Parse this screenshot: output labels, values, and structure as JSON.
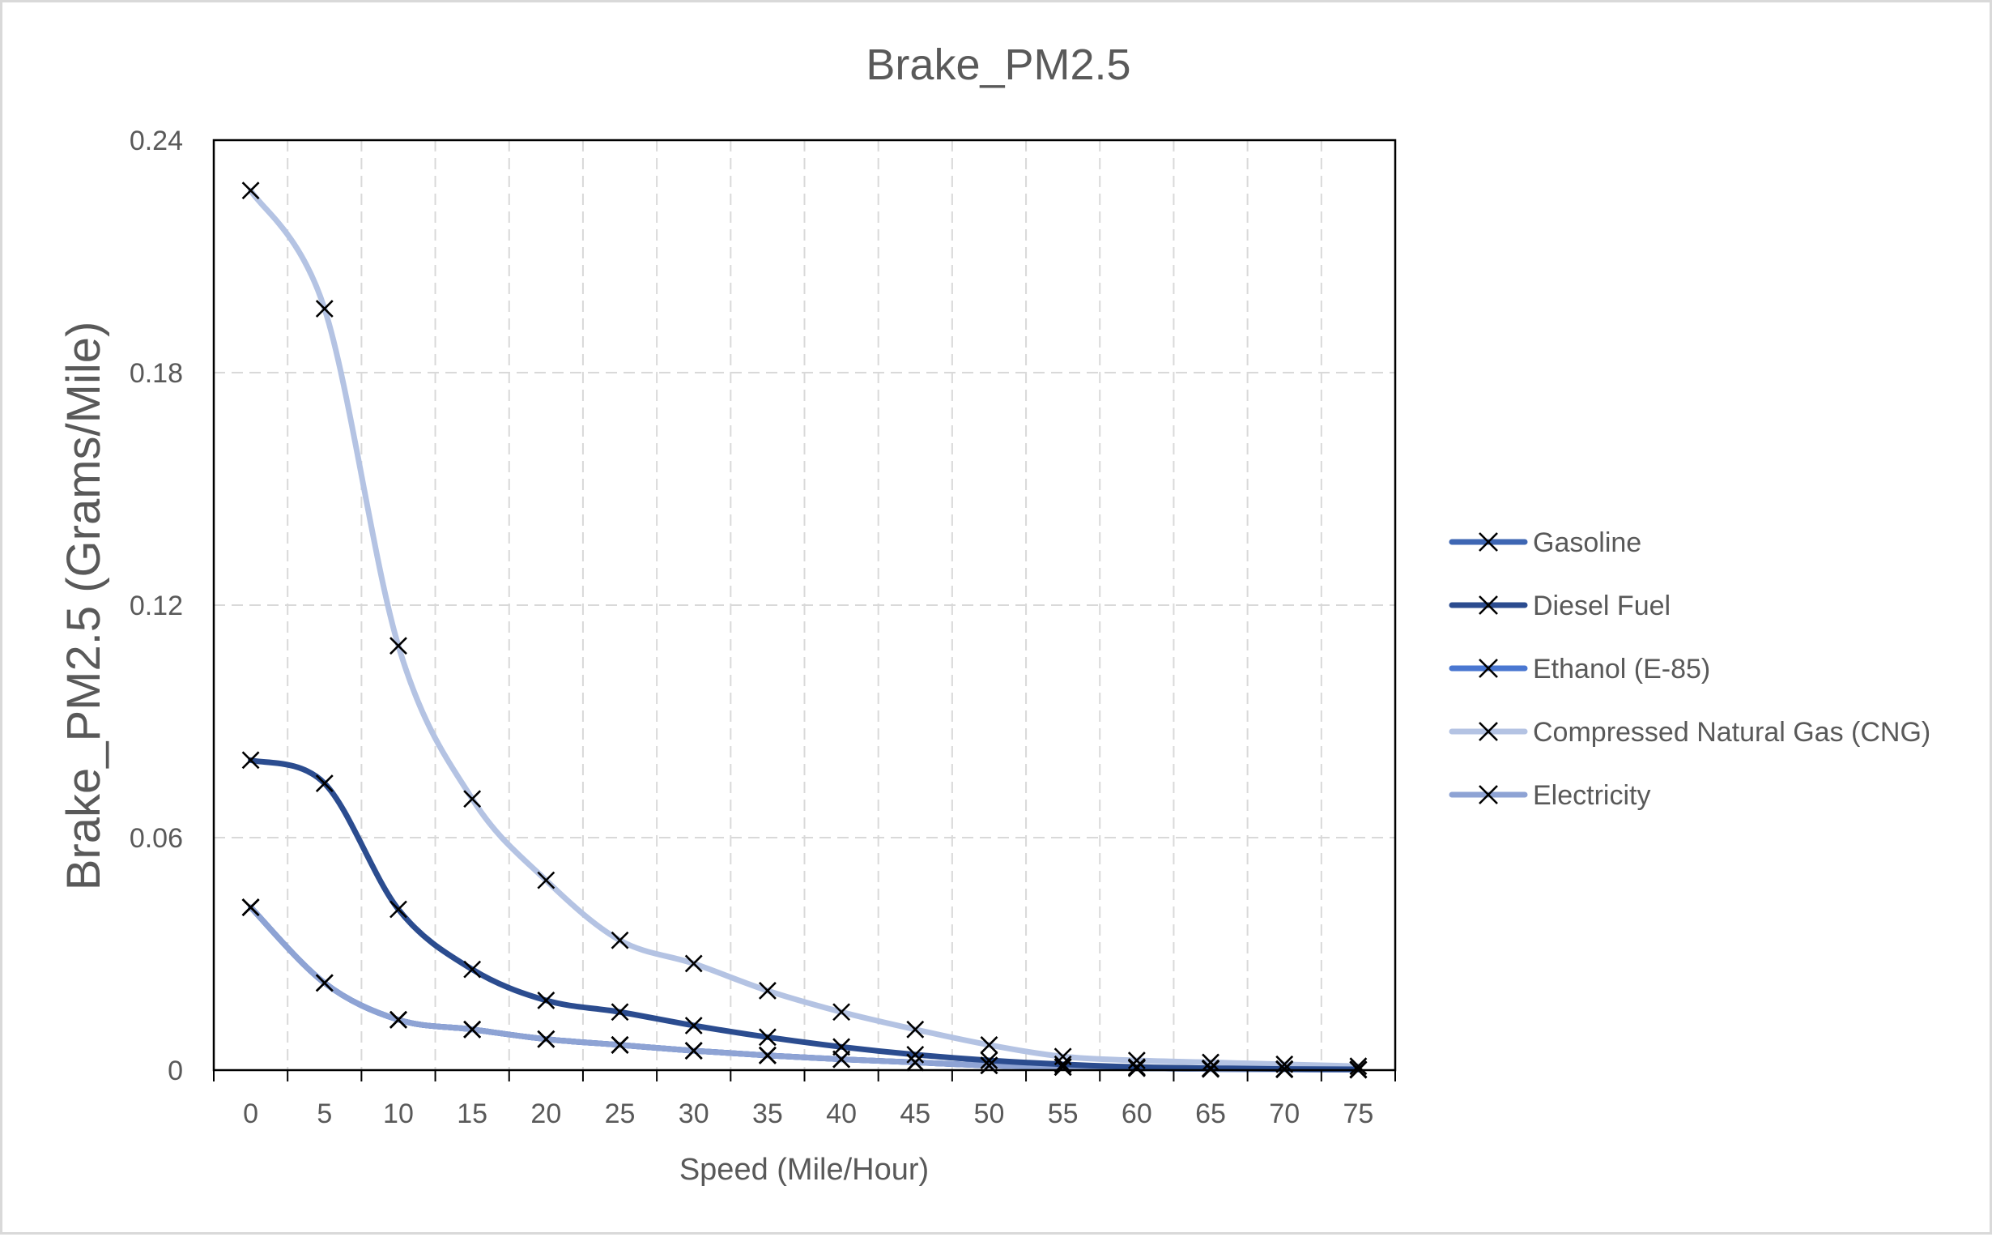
{
  "chart_data": {
    "type": "line",
    "title": "Brake_PM2.5",
    "xlabel": "Speed (Mile/Hour)",
    "ylabel": "Brake_PM2.5 (Grams/Mile)",
    "x": [
      0,
      5,
      10,
      15,
      20,
      25,
      30,
      35,
      40,
      45,
      50,
      55,
      60,
      65,
      70,
      75
    ],
    "xlim": [
      -2.5,
      77.5
    ],
    "ylim": [
      0,
      0.24
    ],
    "yticks": [
      0,
      0.06,
      0.12,
      0.18,
      0.24
    ],
    "ytick_labels": [
      "0",
      "0.06",
      "0.12",
      "0.18",
      "0.24"
    ],
    "xtick_labels": [
      "0",
      "5",
      "10",
      "15",
      "20",
      "25",
      "30",
      "35",
      "40",
      "45",
      "50",
      "55",
      "60",
      "65",
      "70",
      "75"
    ],
    "grid": true,
    "legend_position": "right",
    "marker": "x",
    "smooth": true,
    "series": [
      {
        "name": "Gasoline",
        "color": "#3e66b3",
        "values": [
          0.042,
          0.0225,
          0.013,
          0.0105,
          0.008,
          0.0065,
          0.005,
          0.0038,
          0.0028,
          0.002,
          0.0012,
          0.0008,
          0.0005,
          0.0003,
          0.0002,
          0.0001
        ]
      },
      {
        "name": "Diesel Fuel",
        "color": "#2b4c8f",
        "values": [
          0.08,
          0.074,
          0.0415,
          0.026,
          0.018,
          0.015,
          0.0115,
          0.0085,
          0.006,
          0.004,
          0.0025,
          0.0015,
          0.0008,
          0.0005,
          0.0003,
          0.0002
        ]
      },
      {
        "name": "Ethanol (E-85)",
        "color": "#4a77d1",
        "values": [
          0.042,
          0.0225,
          0.013,
          0.0105,
          0.008,
          0.0065,
          0.005,
          0.0038,
          0.0028,
          0.002,
          0.0012,
          0.0008,
          0.0005,
          0.0003,
          0.0002,
          0.0001
        ]
      },
      {
        "name": "Compressed Natural Gas (CNG)",
        "color": "#b4c3e3",
        "values": [
          0.227,
          0.1965,
          0.1095,
          0.07,
          0.049,
          0.0335,
          0.0275,
          0.0205,
          0.015,
          0.0105,
          0.0065,
          0.0035,
          0.0025,
          0.002,
          0.0015,
          0.001
        ]
      },
      {
        "name": "Electricity",
        "color": "#8ea3d4",
        "values": [
          0.042,
          0.0225,
          0.013,
          0.0105,
          0.008,
          0.0065,
          0.005,
          0.0038,
          0.0028,
          0.002,
          0.0012,
          0.0008,
          0.0005,
          0.0003,
          0.0002,
          0.0001
        ]
      }
    ]
  }
}
